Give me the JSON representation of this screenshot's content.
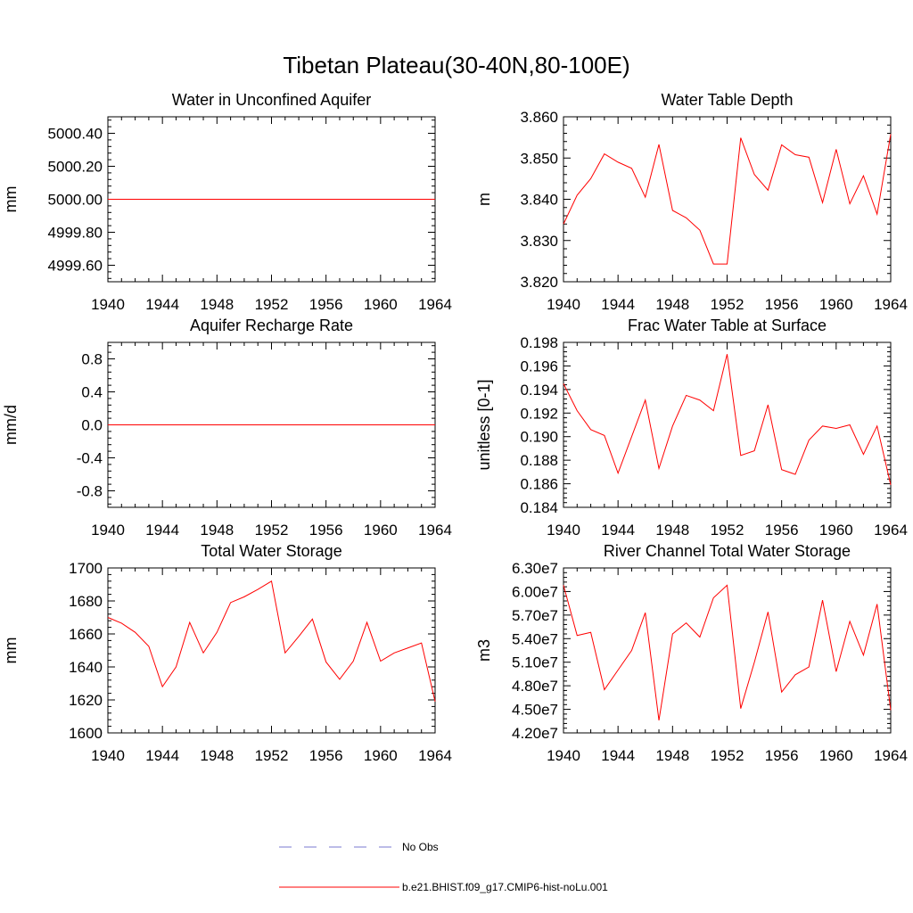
{
  "title": "Tibetan Plateau(30-40N,80-100E)",
  "colors": {
    "model_line": "#ff0000",
    "obs_line": "#7a7ad0",
    "axis": "#000000"
  },
  "chart_data": [
    {
      "type": "line",
      "title": "Water in Unconfined Aquifer",
      "xlabel": "",
      "ylabel": "mm",
      "xlim": [
        1940,
        1964
      ],
      "ylim": [
        4999.5,
        5000.5
      ],
      "x_ticks": [
        "1940",
        "1944",
        "1948",
        "1952",
        "1956",
        "1960",
        "1964"
      ],
      "y_ticks": [
        {
          "value": 4999.6,
          "label": "4999.60"
        },
        {
          "value": 4999.8,
          "label": "4999.80"
        },
        {
          "value": 5000.0,
          "label": "5000.00"
        },
        {
          "value": 5000.2,
          "label": "5000.20"
        },
        {
          "value": 5000.4,
          "label": "5000.40"
        }
      ],
      "x": [
        1940,
        1964
      ],
      "series": [
        {
          "name": "b.e21.BHIST.f09_g17.CMIP6-hist-noLu.001",
          "values": [
            5000.0,
            5000.0
          ]
        }
      ]
    },
    {
      "type": "line",
      "title": "Water Table Depth",
      "xlabel": "",
      "ylabel": "m",
      "xlim": [
        1940,
        1964
      ],
      "ylim": [
        3.82,
        3.86
      ],
      "x_ticks": [
        "1940",
        "1944",
        "1948",
        "1952",
        "1956",
        "1960",
        "1964"
      ],
      "y_ticks": [
        {
          "value": 3.82,
          "label": "3.820"
        },
        {
          "value": 3.83,
          "label": "3.830"
        },
        {
          "value": 3.84,
          "label": "3.840"
        },
        {
          "value": 3.85,
          "label": "3.850"
        },
        {
          "value": 3.86,
          "label": "3.860"
        }
      ],
      "x": [
        1940,
        1941,
        1942,
        1943,
        1944,
        1945,
        1946,
        1947,
        1948,
        1949,
        1950,
        1951,
        1952,
        1953,
        1954,
        1955,
        1956,
        1957,
        1958,
        1959,
        1960,
        1961,
        1962,
        1963,
        1964
      ],
      "series": [
        {
          "name": "b.e21.BHIST.f09_g17.CMIP6-hist-noLu.001",
          "values": [
            3.834,
            3.841,
            3.845,
            3.851,
            3.849,
            3.8475,
            3.8405,
            3.8533,
            3.8373,
            3.8355,
            3.8325,
            3.8243,
            3.8243,
            3.8549,
            3.846,
            3.8422,
            3.8532,
            3.8508,
            3.8502,
            3.8392,
            3.8521,
            3.8389,
            3.8457,
            3.8364,
            3.8558
          ]
        }
      ]
    },
    {
      "type": "line",
      "title": "Aquifer Recharge Rate",
      "xlabel": "",
      "ylabel": "mm/d",
      "xlim": [
        1940,
        1964
      ],
      "ylim": [
        -1.0,
        1.0
      ],
      "x_ticks": [
        "1940",
        "1944",
        "1948",
        "1952",
        "1956",
        "1960",
        "1964"
      ],
      "y_ticks": [
        {
          "value": -0.8,
          "label": "-0.8"
        },
        {
          "value": -0.4,
          "label": "-0.4"
        },
        {
          "value": 0.0,
          "label": "0.0"
        },
        {
          "value": 0.4,
          "label": "0.4"
        },
        {
          "value": 0.8,
          "label": "0.8"
        }
      ],
      "x": [
        1940,
        1964
      ],
      "series": [
        {
          "name": "b.e21.BHIST.f09_g17.CMIP6-hist-noLu.001",
          "values": [
            0.0,
            0.0
          ]
        }
      ]
    },
    {
      "type": "line",
      "title": "Frac Water Table at Surface",
      "xlabel": "",
      "ylabel": "unitless [0-1]",
      "xlim": [
        1940,
        1964
      ],
      "ylim": [
        0.184,
        0.198
      ],
      "x_ticks": [
        "1940",
        "1944",
        "1948",
        "1952",
        "1956",
        "1960",
        "1964"
      ],
      "y_ticks": [
        {
          "value": 0.184,
          "label": "0.184"
        },
        {
          "value": 0.186,
          "label": "0.186"
        },
        {
          "value": 0.188,
          "label": "0.188"
        },
        {
          "value": 0.19,
          "label": "0.190"
        },
        {
          "value": 0.192,
          "label": "0.192"
        },
        {
          "value": 0.194,
          "label": "0.194"
        },
        {
          "value": 0.196,
          "label": "0.196"
        },
        {
          "value": 0.198,
          "label": "0.198"
        }
      ],
      "x": [
        1940,
        1941,
        1942,
        1943,
        1944,
        1945,
        1946,
        1947,
        1948,
        1949,
        1950,
        1951,
        1952,
        1953,
        1954,
        1955,
        1956,
        1957,
        1958,
        1959,
        1960,
        1961,
        1962,
        1963,
        1964
      ],
      "series": [
        {
          "name": "b.e21.BHIST.f09_g17.CMIP6-hist-noLu.001",
          "values": [
            0.1945,
            0.1922,
            0.1906,
            0.1901,
            0.1869,
            0.19,
            0.1931,
            0.1873,
            0.1909,
            0.1935,
            0.1931,
            0.1922,
            0.197,
            0.1884,
            0.1888,
            0.1927,
            0.1872,
            0.1868,
            0.1897,
            0.1909,
            0.1907,
            0.191,
            0.1885,
            0.1909,
            0.1859
          ]
        }
      ]
    },
    {
      "type": "line",
      "title": "Total Water Storage",
      "xlabel": "",
      "ylabel": "mm",
      "xlim": [
        1940,
        1964
      ],
      "ylim": [
        1600,
        1700
      ],
      "x_ticks": [
        "1940",
        "1944",
        "1948",
        "1952",
        "1956",
        "1960",
        "1964"
      ],
      "y_ticks": [
        {
          "value": 1600,
          "label": "1600"
        },
        {
          "value": 1620,
          "label": "1620"
        },
        {
          "value": 1640,
          "label": "1640"
        },
        {
          "value": 1660,
          "label": "1660"
        },
        {
          "value": 1680,
          "label": "1680"
        },
        {
          "value": 1700,
          "label": "1700"
        }
      ],
      "x": [
        1940,
        1941,
        1942,
        1943,
        1944,
        1945,
        1946,
        1947,
        1948,
        1949,
        1950,
        1951,
        1952,
        1953,
        1954,
        1955,
        1956,
        1957,
        1958,
        1959,
        1960,
        1961,
        1962,
        1963,
        1964
      ],
      "series": [
        {
          "name": "b.e21.BHIST.f09_g17.CMIP6-hist-noLu.001",
          "values": [
            1670,
            1666.5,
            1661,
            1652.5,
            1628,
            1640,
            1667,
            1648.5,
            1661,
            1679,
            1682.5,
            1687,
            1692,
            1648.5,
            1658.5,
            1669,
            1643,
            1632.5,
            1643.5,
            1667,
            1643.5,
            1648.5,
            1651.5,
            1654.5,
            1619
          ]
        }
      ]
    },
    {
      "type": "line",
      "title": "River Channel Total Water Storage",
      "xlabel": "",
      "ylabel": "m3",
      "xlim": [
        1940,
        1964
      ],
      "ylim": [
        42000000,
        63000000
      ],
      "x_ticks": [
        "1940",
        "1944",
        "1948",
        "1952",
        "1956",
        "1960",
        "1964"
      ],
      "y_ticks": [
        {
          "value": 42000000,
          "label": "4.20e7"
        },
        {
          "value": 45000000,
          "label": "4.50e7"
        },
        {
          "value": 48000000,
          "label": "4.80e7"
        },
        {
          "value": 51000000,
          "label": "5.10e7"
        },
        {
          "value": 54000000,
          "label": "5.40e7"
        },
        {
          "value": 57000000,
          "label": "5.70e7"
        },
        {
          "value": 60000000,
          "label": "6.00e7"
        },
        {
          "value": 63000000,
          "label": "6.30e7"
        }
      ],
      "x": [
        1940,
        1941,
        1942,
        1943,
        1944,
        1945,
        1946,
        1947,
        1948,
        1949,
        1950,
        1951,
        1952,
        1953,
        1954,
        1955,
        1956,
        1957,
        1958,
        1959,
        1960,
        1961,
        1962,
        1963,
        1964
      ],
      "series": [
        {
          "name": "b.e21.BHIST.f09_g17.CMIP6-hist-noLu.001",
          "values": [
            60800000,
            54400000,
            54800000,
            47500000,
            50000000,
            52500000,
            57300000,
            43600000,
            54600000,
            56000000,
            54200000,
            59200000,
            60800000,
            45100000,
            51000000,
            57400000,
            47200000,
            49400000,
            50400000,
            58900000,
            49800000,
            56200000,
            51900000,
            58400000,
            44900000
          ]
        }
      ]
    }
  ],
  "legend": [
    {
      "label": "No Obs",
      "style": "dashed"
    },
    {
      "label": "b.e21.BHIST.f09_g17.CMIP6-hist-noLu.001",
      "style": "solid"
    }
  ]
}
